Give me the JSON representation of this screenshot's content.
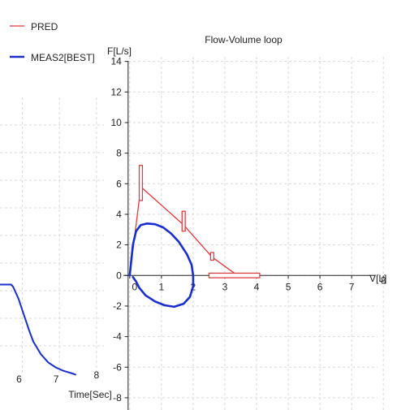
{
  "legend": {
    "items": [
      {
        "label": "PRED",
        "color": "#e03c3c"
      },
      {
        "label": "MEAS2[BEST]",
        "color": "#1a2ecf"
      }
    ]
  },
  "chart_data": [
    {
      "type": "line",
      "title": "",
      "xlabel": "Time[Sec]",
      "ylabel": "",
      "x_ticks": [
        6,
        7,
        8
      ],
      "xlim": [
        5.4,
        8.2
      ],
      "ylim": [
        0,
        10
      ],
      "grid": true,
      "series": [
        {
          "color": "#1a2ecf",
          "points": [
            [
              5.4,
              3.22
            ],
            [
              5.6,
              3.22
            ],
            [
              5.7,
              3.22
            ],
            [
              5.75,
              3.15
            ],
            [
              5.8,
              3.0
            ],
            [
              5.9,
              2.7
            ],
            [
              6.0,
              2.3
            ],
            [
              6.1,
              1.9
            ],
            [
              6.2,
              1.5
            ],
            [
              6.3,
              1.15
            ],
            [
              6.5,
              0.7
            ],
            [
              6.7,
              0.4
            ],
            [
              6.9,
              0.22
            ],
            [
              7.1,
              0.1
            ],
            [
              7.35,
              0.0
            ],
            [
              7.45,
              -0.05
            ]
          ]
        }
      ]
    },
    {
      "type": "line",
      "title": "Flow-Volume loop",
      "xlabel": "V[L]",
      "ylabel": "F[L/s]",
      "x_ticks": [
        0,
        1,
        2,
        3,
        4,
        5,
        6,
        7,
        8
      ],
      "y_ticks": [
        14,
        12,
        10,
        8,
        6,
        4,
        2,
        0,
        -2,
        -4,
        -6,
        -8
      ],
      "xlim": [
        -0.2,
        8.2
      ],
      "ylim": [
        -8.8,
        14.3
      ],
      "grid": true,
      "legend_position": "top-left",
      "series": [
        {
          "name": "PRED",
          "color": "#e03c3c",
          "points": [
            [
              0,
              0
            ],
            [
              0.35,
              5.8
            ],
            [
              1.7,
              3.3
            ],
            [
              2.6,
              1.2
            ],
            [
              3.4,
              0
            ]
          ],
          "range_markers": [
            {
              "x": 0.35,
              "x_from": 0.3,
              "x_to": 0.4,
              "y_from": 4.9,
              "y_to": 7.2
            },
            {
              "x": 1.7,
              "x_from": 1.65,
              "x_to": 1.75,
              "y_from": 2.9,
              "y_to": 4.2
            },
            {
              "x": 2.6,
              "x_from": 2.55,
              "x_to": 2.65,
              "y_from": 1.0,
              "y_to": 1.5
            },
            {
              "x": 3.4,
              "x_from": 2.5,
              "x_to": 4.1,
              "y_from": -0.15,
              "y_to": 0.15
            }
          ]
        },
        {
          "name": "MEAS2[BEST]",
          "color": "#1a2ecf",
          "points": [
            [
              0,
              0
            ],
            [
              0.1,
              2.0
            ],
            [
              0.2,
              2.9
            ],
            [
              0.35,
              3.3
            ],
            [
              0.55,
              3.4
            ],
            [
              0.8,
              3.35
            ],
            [
              1.05,
              3.15
            ],
            [
              1.3,
              2.75
            ],
            [
              1.55,
              2.2
            ],
            [
              1.8,
              1.4
            ],
            [
              1.95,
              0.7
            ],
            [
              2.0,
              0.0
            ],
            [
              2.0,
              -0.7
            ],
            [
              1.9,
              -1.4
            ],
            [
              1.7,
              -1.85
            ],
            [
              1.4,
              -2.05
            ],
            [
              1.1,
              -1.95
            ],
            [
              0.8,
              -1.7
            ],
            [
              0.5,
              -1.3
            ],
            [
              0.3,
              -0.8
            ],
            [
              0.2,
              -0.4
            ],
            [
              0.1,
              -0.1
            ]
          ]
        }
      ]
    }
  ]
}
